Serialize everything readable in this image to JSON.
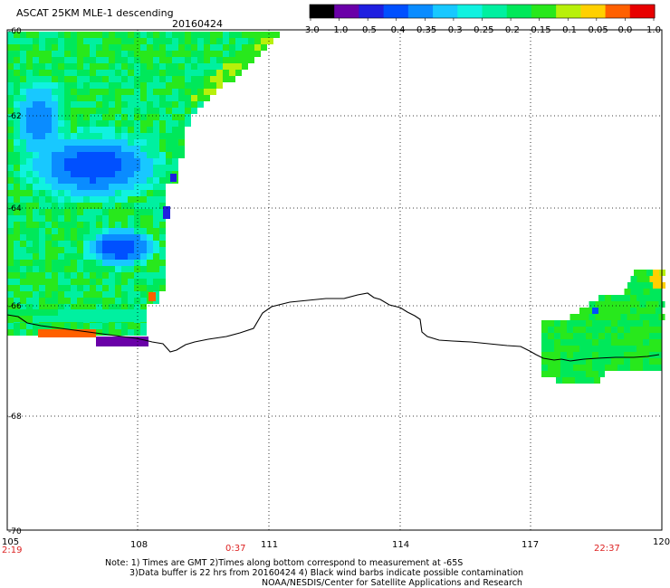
{
  "header": {
    "title": "ASCAT 25KM MLE-1 descending",
    "date": "20160424"
  },
  "colorbar": {
    "labels": [
      "-3.0",
      "-1.0",
      "-0.5",
      "-0.4",
      "-0.35",
      "-0.3",
      "-0.25",
      "-0.2",
      "-0.15",
      "-0.1",
      "-0.05",
      "0.0",
      "1.0"
    ],
    "colors": [
      "#000000",
      "#6a00a8",
      "#1f1fe0",
      "#0050ff",
      "#0a8cff",
      "#18c8ff",
      "#10f2e0",
      "#00f0a0",
      "#00e85a",
      "#28e81c",
      "#b8f00a",
      "#ffd000",
      "#ff6000",
      "#e80000"
    ]
  },
  "map": {
    "lat_labels": [
      "-60",
      "-62",
      "-64",
      "-66",
      "-68",
      "-70"
    ],
    "lon_labels": [
      "105",
      "108",
      "111",
      "114",
      "117",
      "120"
    ],
    "times": [
      "2:19",
      "0:37",
      "22:37"
    ]
  },
  "notes": {
    "line1": "Note: 1) Times are GMT 2)Times along bottom correspond to measurement at -65S",
    "line2": "3)Data buffer is 22 hrs from 20160424 4) Black wind barbs indicate possible contamination",
    "line3": "NOAA/NESDIS/Center for Satellite Applications and Research"
  }
}
